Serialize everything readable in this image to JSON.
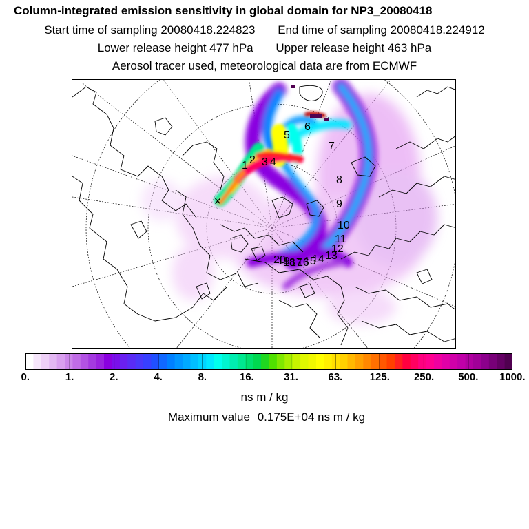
{
  "header": {
    "title": "Column-integrated emission sensitivity in global domain for NP3_20080418",
    "start_label": "Start time of sampling 20080418.224823",
    "end_label": "End time of sampling 20080418.224912",
    "lower_label": "Lower release height  477 hPa",
    "upper_label": "Upper release height  463 hPa",
    "info": "Aerosol tracer used, meteorological data are from ECMWF"
  },
  "map": {
    "day_labels": [
      "1",
      "2",
      "3",
      "4",
      "5",
      "6",
      "7",
      "8",
      "9",
      "10",
      "11",
      "12",
      "13",
      "14",
      "15",
      "16",
      "17",
      "18",
      "19",
      "20"
    ],
    "release_marker": "×"
  },
  "colorbar": {
    "tick_labels": [
      "0.",
      "1.",
      "2.",
      "4.",
      "8.",
      "16.",
      "31.",
      "63.",
      "125.",
      "250.",
      "500.",
      "1000."
    ],
    "colors": [
      "#ffffff",
      "#f6e6fb",
      "#eed0f7",
      "#e3b8f3",
      "#d9a0ef",
      "#cc86ea",
      "#c06ce6",
      "#b252e3",
      "#a43ae0",
      "#9a22df",
      "#8a00e0",
      "#7a10ea",
      "#6a20f0",
      "#5a2cf5",
      "#4a38fa",
      "#3840ff",
      "#2050ff",
      "#1068ff",
      "#0080ff",
      "#0096ff",
      "#00aaff",
      "#00bfff",
      "#00d4ff",
      "#00e8ff",
      "#00ffee",
      "#00f5d0",
      "#00edb0",
      "#00e890",
      "#00e070",
      "#00d850",
      "#20d820",
      "#50e000",
      "#80e800",
      "#a8f000",
      "#c8f400",
      "#e0f800",
      "#f0f800",
      "#ffff00",
      "#fff000",
      "#ffe000",
      "#ffd000",
      "#ffb800",
      "#ffa000",
      "#ff8800",
      "#ff7000",
      "#ff5800",
      "#ff4000",
      "#ff2020",
      "#ff0040",
      "#ff0060",
      "#ff0080",
      "#ff0090",
      "#f000a0",
      "#e000a8",
      "#d000a8",
      "#c000a8",
      "#b000a0",
      "#a00098",
      "#8c008c",
      "#780078",
      "#640064",
      "#500050"
    ],
    "units": "ns m / kg"
  },
  "max_value": {
    "label": "Maximum value",
    "value": "0.175E+04 ns m / kg"
  }
}
